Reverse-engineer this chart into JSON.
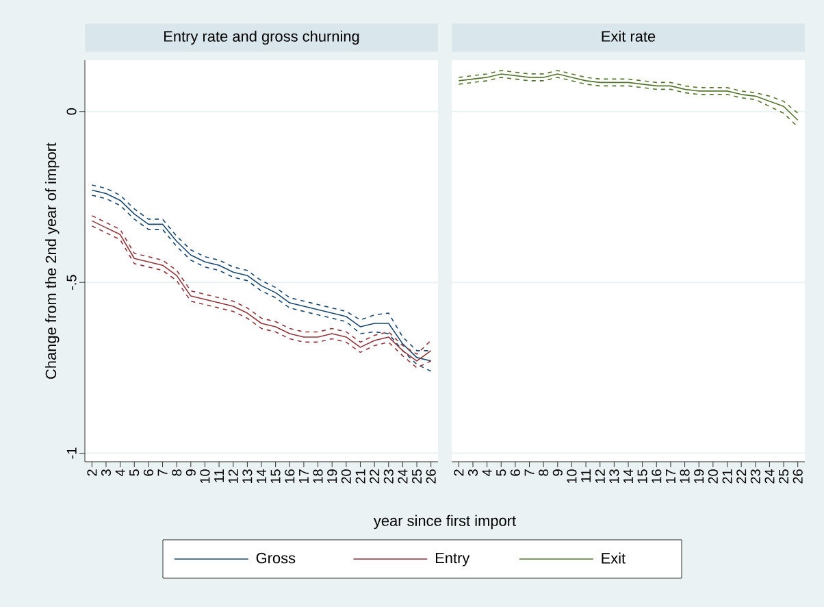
{
  "chart_data": [
    {
      "type": "line",
      "title": "Entry rate and gross churning",
      "xlabel": "year since first import",
      "ylabel": "Change from the 2nd year of import",
      "x": [
        2,
        3,
        4,
        5,
        6,
        7,
        8,
        9,
        10,
        11,
        12,
        13,
        14,
        15,
        16,
        17,
        18,
        19,
        20,
        21,
        22,
        23,
        24,
        25,
        26
      ],
      "series": [
        {
          "name": "Gross",
          "color": "#1a476f",
          "values": [
            -0.23,
            -0.24,
            -0.26,
            -0.3,
            -0.33,
            -0.33,
            -0.38,
            -0.42,
            -0.44,
            -0.45,
            -0.47,
            -0.48,
            -0.51,
            -0.53,
            -0.56,
            -0.57,
            -0.58,
            -0.59,
            -0.6,
            -0.63,
            -0.62,
            -0.62,
            -0.68,
            -0.72,
            -0.73
          ]
        },
        {
          "color": "#1a476f",
          "line_style": "dashed",
          "values": [
            -0.245,
            -0.255,
            -0.275,
            -0.315,
            -0.345,
            -0.345,
            -0.395,
            -0.435,
            -0.455,
            -0.465,
            -0.485,
            -0.495,
            -0.525,
            -0.545,
            -0.575,
            -0.585,
            -0.595,
            -0.605,
            -0.615,
            -0.65,
            -0.645,
            -0.65,
            -0.7,
            -0.74,
            -0.76
          ]
        },
        {
          "color": "#1a476f",
          "line_style": "dashed",
          "values": [
            -0.215,
            -0.225,
            -0.245,
            -0.285,
            -0.315,
            -0.315,
            -0.365,
            -0.405,
            -0.425,
            -0.435,
            -0.455,
            -0.465,
            -0.495,
            -0.515,
            -0.545,
            -0.555,
            -0.565,
            -0.575,
            -0.585,
            -0.61,
            -0.595,
            -0.59,
            -0.66,
            -0.7,
            -0.7
          ]
        },
        {
          "name": "Entry",
          "color": "#90353b",
          "values": [
            -0.32,
            -0.34,
            -0.36,
            -0.43,
            -0.44,
            -0.45,
            -0.48,
            -0.54,
            -0.55,
            -0.56,
            -0.57,
            -0.59,
            -0.62,
            -0.63,
            -0.65,
            -0.66,
            -0.66,
            -0.65,
            -0.66,
            -0.69,
            -0.67,
            -0.66,
            -0.7,
            -0.73,
            -0.7
          ]
        },
        {
          "color": "#90353b",
          "line_style": "dashed",
          "values": [
            -0.335,
            -0.355,
            -0.375,
            -0.445,
            -0.455,
            -0.465,
            -0.495,
            -0.555,
            -0.565,
            -0.575,
            -0.585,
            -0.605,
            -0.635,
            -0.645,
            -0.665,
            -0.675,
            -0.675,
            -0.665,
            -0.675,
            -0.705,
            -0.685,
            -0.675,
            -0.715,
            -0.75,
            -0.73
          ]
        },
        {
          "color": "#90353b",
          "line_style": "dashed",
          "values": [
            -0.305,
            -0.325,
            -0.345,
            -0.415,
            -0.425,
            -0.435,
            -0.465,
            -0.525,
            -0.535,
            -0.545,
            -0.555,
            -0.575,
            -0.605,
            -0.615,
            -0.635,
            -0.645,
            -0.645,
            -0.635,
            -0.645,
            -0.675,
            -0.655,
            -0.645,
            -0.685,
            -0.71,
            -0.67
          ]
        }
      ],
      "xlim": [
        1.5,
        26.5
      ],
      "xticks": [
        2,
        3,
        4,
        5,
        6,
        7,
        8,
        9,
        10,
        11,
        12,
        13,
        14,
        15,
        16,
        17,
        18,
        19,
        20,
        21,
        22,
        23,
        24,
        25,
        26
      ],
      "ylim": [
        -1.025,
        0.15
      ],
      "yticks": [
        0,
        {
          "value": -0.5,
          "label": "-.5"
        },
        -1
      ],
      "grid": "y",
      "legend": "bottom",
      "marker": "none",
      "line_style": "solid"
    },
    {
      "type": "line",
      "title": "Exit rate",
      "x": [
        2,
        3,
        4,
        5,
        6,
        7,
        8,
        9,
        10,
        11,
        12,
        13,
        14,
        15,
        16,
        17,
        18,
        19,
        20,
        21,
        22,
        23,
        24,
        25,
        26
      ],
      "series": [
        {
          "name": "Exit",
          "color": "#55752f",
          "values": [
            0.09,
            0.095,
            0.1,
            0.11,
            0.105,
            0.1,
            0.1,
            0.11,
            0.1,
            0.09,
            0.085,
            0.085,
            0.085,
            0.08,
            0.075,
            0.075,
            0.065,
            0.06,
            0.06,
            0.06,
            0.05,
            0.045,
            0.03,
            0.015,
            -0.025
          ]
        },
        {
          "color": "#55752f",
          "line_style": "dashed",
          "values": [
            0.08,
            0.085,
            0.09,
            0.1,
            0.095,
            0.09,
            0.09,
            0.1,
            0.09,
            0.08,
            0.075,
            0.075,
            0.075,
            0.07,
            0.065,
            0.065,
            0.055,
            0.05,
            0.05,
            0.05,
            0.04,
            0.035,
            0.015,
            -0.005,
            -0.045
          ]
        },
        {
          "color": "#55752f",
          "line_style": "dashed",
          "values": [
            0.1,
            0.105,
            0.11,
            0.12,
            0.115,
            0.11,
            0.11,
            0.12,
            0.11,
            0.1,
            0.095,
            0.095,
            0.095,
            0.09,
            0.085,
            0.085,
            0.075,
            0.07,
            0.07,
            0.07,
            0.06,
            0.055,
            0.045,
            0.03,
            -0.005
          ]
        }
      ],
      "xlim": [
        1.5,
        26.5
      ],
      "xticks": [
        2,
        3,
        4,
        5,
        6,
        7,
        8,
        9,
        10,
        11,
        12,
        13,
        14,
        15,
        16,
        17,
        18,
        19,
        20,
        21,
        22,
        23,
        24,
        25,
        26
      ],
      "ylim": [
        -1.025,
        0.15
      ],
      "yticks": [
        0,
        -0.5,
        -1
      ],
      "tick_labels": "x",
      "grid": "y",
      "legend": "bottom",
      "marker": "none",
      "line_style": "solid"
    }
  ]
}
